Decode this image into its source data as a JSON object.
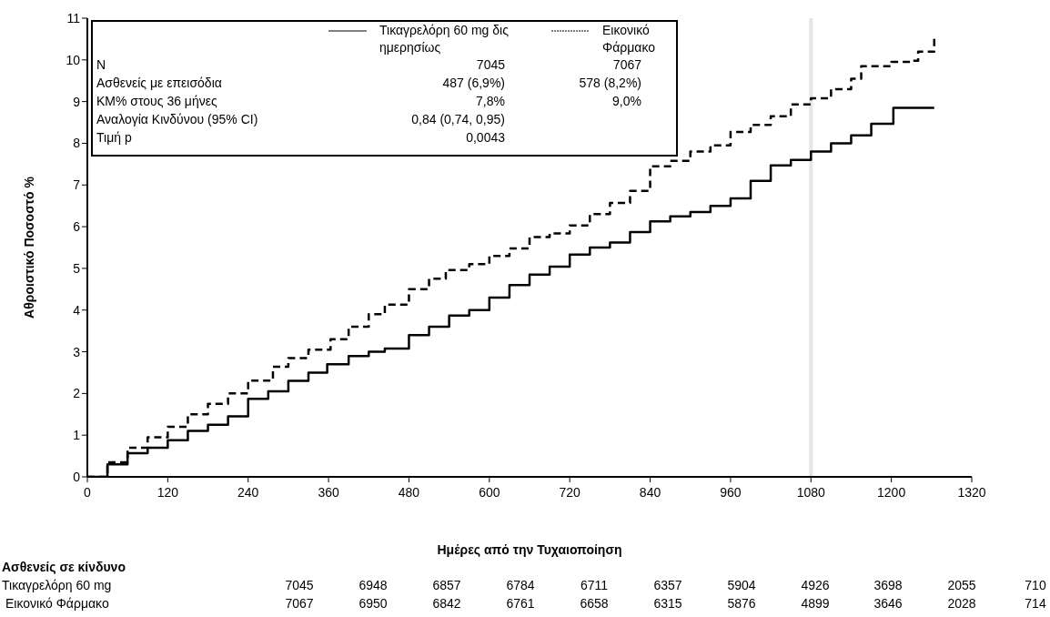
{
  "chart_data": {
    "type": "step",
    "xlabel": "Ημέρες από την Τυχαιοποίηση",
    "ylabel": "Αθροιστικό Ποσοστό %",
    "xlim": [
      0,
      1320
    ],
    "xticks": [
      0,
      120,
      240,
      360,
      480,
      600,
      720,
      840,
      960,
      1080,
      1200,
      1320
    ],
    "ylim": [
      0,
      11
    ],
    "yticks": [
      0,
      1,
      2,
      3,
      4,
      5,
      6,
      7,
      8,
      9,
      10,
      11
    ],
    "legend": "top left",
    "series": [
      {
        "name": "Τικαγρελόρη 60 mg δις ημερησίως",
        "color": "#000000",
        "line_style": "solid",
        "x": [
          0,
          30,
          60,
          90,
          120,
          150,
          180,
          210,
          240,
          270,
          300,
          330,
          358,
          390,
          420,
          444,
          480,
          510,
          540,
          570,
          600,
          630,
          660,
          690,
          720,
          750,
          780,
          810,
          840,
          870,
          900,
          930,
          960,
          990,
          1020,
          1050,
          1080,
          1110,
          1140,
          1170,
          1203,
          1264
        ],
        "values": [
          0,
          0.3,
          0.57,
          0.7,
          0.88,
          1.1,
          1.25,
          1.45,
          1.87,
          2.05,
          2.3,
          2.5,
          2.7,
          2.9,
          3.0,
          3.08,
          3.4,
          3.6,
          3.87,
          4.0,
          4.3,
          4.6,
          4.85,
          5.04,
          5.33,
          5.5,
          5.62,
          5.87,
          6.13,
          6.25,
          6.35,
          6.5,
          6.68,
          7.1,
          7.47,
          7.6,
          7.8,
          8.0,
          8.19,
          8.47,
          8.85,
          8.85
        ]
      },
      {
        "name": "Εικονικό Φάρμακο",
        "color": "#000000",
        "line_style": "dashed",
        "x": [
          0,
          30,
          60,
          90,
          120,
          150,
          180,
          210,
          240,
          277,
          300,
          330,
          363,
          390,
          420,
          444,
          480,
          510,
          535,
          570,
          600,
          630,
          660,
          690,
          720,
          750,
          780,
          810,
          840,
          870,
          900,
          930,
          960,
          990,
          1020,
          1050,
          1080,
          1110,
          1140,
          1155,
          1200,
          1230,
          1240,
          1264
        ],
        "values": [
          0,
          0.35,
          0.7,
          0.95,
          1.2,
          1.5,
          1.75,
          2.0,
          2.31,
          2.64,
          2.85,
          3.05,
          3.3,
          3.6,
          3.9,
          4.13,
          4.5,
          4.75,
          4.96,
          5.1,
          5.3,
          5.48,
          5.75,
          5.84,
          6.03,
          6.3,
          6.57,
          6.86,
          7.45,
          7.58,
          7.8,
          7.95,
          8.27,
          8.44,
          8.65,
          8.93,
          9.08,
          9.3,
          9.55,
          9.85,
          9.95,
          9.98,
          10.2,
          10.57
        ]
      }
    ],
    "ref_lines": [
      {
        "axis": "x",
        "value": 1080,
        "color": "#e6e6e6"
      }
    ],
    "annotations": [
      "N",
      "7045",
      "7067",
      "Ασθενείς με επεισόδια",
      "487 (6,9%)",
      "578 (8,2%)",
      "KM% στους 36 μήνες",
      "7,8%",
      "9,0%",
      "Αναλογία Κινδύνου (95% CI)",
      "0,84 (0,74, 0,95)",
      "Τιμή p",
      "0,0043",
      "Ασθενείς σε κίνδυνο",
      "Τικαγρελόρη 60 mg",
      "7045",
      "6948",
      "6857",
      "6784",
      "6711",
      "6357",
      "5904",
      "4926",
      "3698",
      "2055",
      "710",
      "Εικονικό Φάρμακο",
      "7067",
      "6950",
      "6842",
      "6761",
      "6658",
      "6315",
      "5876",
      "4899",
      "3646",
      "2028",
      "714"
    ]
  }
}
